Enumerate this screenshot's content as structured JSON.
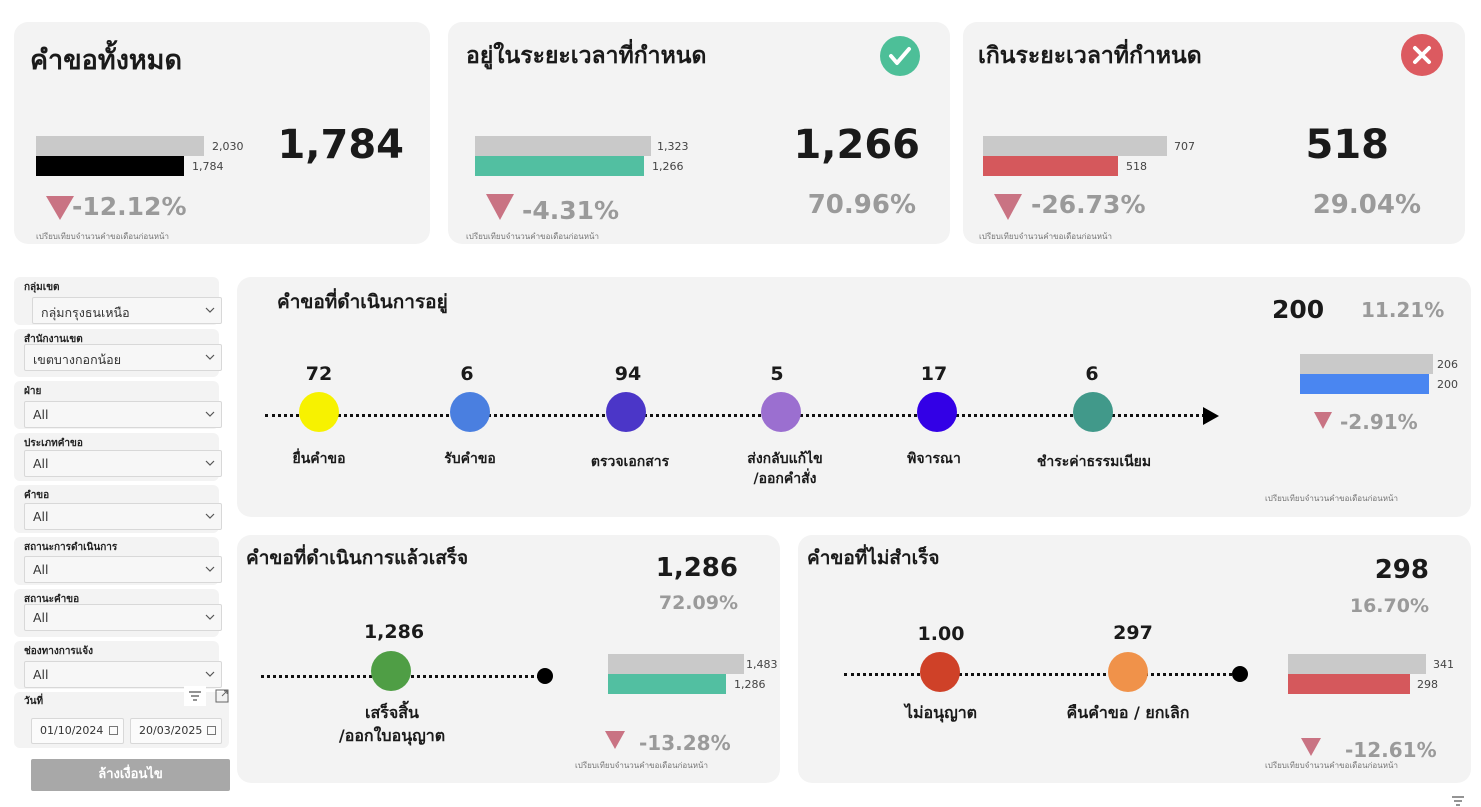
{
  "colors": {
    "grey_bar": "#c9c9c9",
    "black_bar": "#000000",
    "green_bar": "#52bfa1",
    "red_bar": "#d5585c",
    "blue_bar": "#4a86f1",
    "down_triangle": "#c97383",
    "check_green": "#4dbf98",
    "x_red": "#dc5a60"
  },
  "kpi_cards": [
    {
      "title": "คำขอทั้งหมด",
      "bar_prev": "2,030",
      "bar_curr": "1,784",
      "prev_fraction": 1.0,
      "curr_fraction": 0.879,
      "value": "1,784",
      "change": "-12.12%",
      "note": "เปรียบเทียบจำนวนคำขอเดือนก่อนหน้า"
    },
    {
      "title": "อยู่ในระยะเวลาที่กำหนด",
      "bar_prev": "1,323",
      "bar_curr": "1,266",
      "prev_fraction": 1.0,
      "curr_fraction": 0.957,
      "value": "1,266",
      "percent": "70.96%",
      "change": "-4.31%",
      "note": "เปรียบเทียบจำนวนคำขอเดือนก่อนหน้า",
      "icon": "check-circle-icon"
    },
    {
      "title": "เกินระยะเวลาที่กำหนด",
      "bar_prev": "707",
      "bar_curr": "518",
      "prev_fraction": 1.0,
      "curr_fraction": 0.733,
      "value": "518",
      "percent": "29.04%",
      "change": "-26.73%",
      "note": "เปรียบเทียบจำนวนคำขอเดือนก่อนหน้า",
      "icon": "x-circle-icon"
    }
  ],
  "filters": [
    {
      "label": "กลุ่มเขต",
      "value": "กลุ่มกรุงธนเหนือ"
    },
    {
      "label": "สำนักงานเขต",
      "value": "เขตบางกอกน้อย"
    },
    {
      "label": "ฝ่าย",
      "value": "All"
    },
    {
      "label": "ประเภทคำขอ",
      "value": "All"
    },
    {
      "label": "คำขอ",
      "value": "All"
    },
    {
      "label": "สถานะการดำเนินการ",
      "value": "All"
    },
    {
      "label": "สถานะคำขอ",
      "value": "All"
    },
    {
      "label": "ช่องทางการแจ้ง",
      "value": "All"
    }
  ],
  "date_filter": {
    "label": "วันที่",
    "start": "01/10/2024",
    "end": "20/03/2025"
  },
  "clear_button": "ล้างเงื่อนไข",
  "in_progress": {
    "title": "คำขอที่ดำเนินการอยู่",
    "total": "200",
    "percent": "11.21%",
    "bar_prev": "206",
    "bar_curr": "200",
    "prev_fraction": 1.0,
    "curr_fraction": 0.971,
    "change": "-2.91%",
    "note": "เปรียบเทียบจำนวนคำขอเดือนก่อนหน้า",
    "steps": [
      {
        "count": "72",
        "label": "ยื่นคำขอ",
        "color": "#f7f200"
      },
      {
        "count": "6",
        "label": "รับคำขอ",
        "color": "#4a7fe0"
      },
      {
        "count": "94",
        "label": "ตรวจเอกสาร",
        "color": "#4b36c8"
      },
      {
        "count": "5",
        "label": "ส่งกลับแก้ไข",
        "label2": "/ออกคำสั่ง",
        "color": "#9b6fd0"
      },
      {
        "count": "17",
        "label": "พิจารณา",
        "color": "#3300e6"
      },
      {
        "count": "6",
        "label": "ชำระค่าธรรมเนียม",
        "color": "#41998a"
      }
    ]
  },
  "completed": {
    "title": "คำขอที่ดำเนินการแล้วเสร็จ",
    "total": "1,286",
    "percent": "72.09%",
    "step_count": "1,286",
    "step_label": "เสร็จสิ้น",
    "step_label2": "/ออกใบอนุญาต",
    "step_color": "#4f9e45",
    "bar_prev": "1,483",
    "bar_curr": "1,286",
    "prev_fraction": 1.0,
    "curr_fraction": 0.867,
    "change": "-13.28%",
    "note": "เปรียบเทียบจำนวนคำขอเดือนก่อนหน้า"
  },
  "failed": {
    "title": "คำขอที่ไม่สำเร็จ",
    "total": "298",
    "percent": "16.70%",
    "steps": [
      {
        "count": "1.00",
        "label": "ไม่อนุญาต",
        "color": "#cf4128"
      },
      {
        "count": "297",
        "label": "คืนคำขอ / ยกเลิก",
        "color": "#f0924a"
      }
    ],
    "bar_prev": "341",
    "bar_curr": "298",
    "prev_fraction": 1.0,
    "curr_fraction": 0.874,
    "change": "-12.61%",
    "note": "เปรียบเทียบจำนวนคำขอเดือนก่อนหน้า"
  }
}
